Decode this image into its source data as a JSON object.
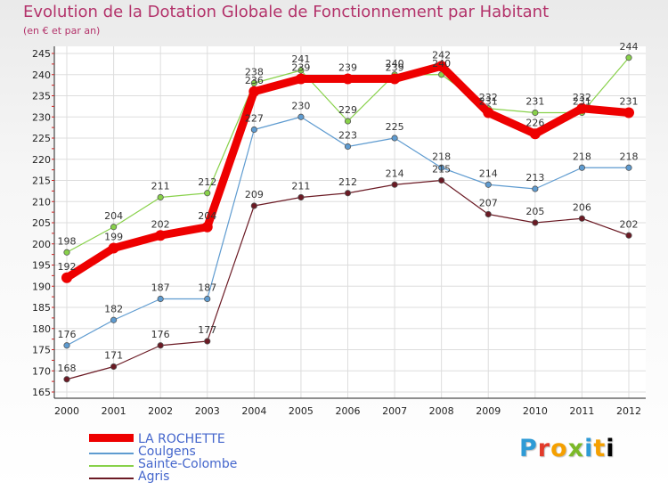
{
  "chart_data": {
    "type": "line",
    "title": "Evolution de la Dotation Globale de Fonctionnement par Habitant",
    "subtitle": "(en € et par an)",
    "categories": [
      "2000",
      "2001",
      "2002",
      "2003",
      "2004",
      "2005",
      "2006",
      "2007",
      "2008",
      "2009",
      "2010",
      "2011",
      "2012"
    ],
    "ylim": [
      165,
      245
    ],
    "yticks": [
      165,
      170,
      175,
      180,
      185,
      190,
      195,
      200,
      205,
      210,
      215,
      220,
      225,
      230,
      235,
      240,
      245
    ],
    "series": [
      {
        "name": "Agris",
        "color": "#6b1a24",
        "values": [
          168,
          171,
          176,
          177,
          209,
          211,
          212,
          214,
          215,
          207,
          205,
          206,
          202
        ]
      },
      {
        "name": "Coulgens",
        "color": "#5e9bd0",
        "values": [
          176,
          182,
          187,
          187,
          227,
          230,
          223,
          225,
          218,
          214,
          213,
          218,
          218
        ]
      },
      {
        "name": "Sainte-Colombe",
        "color": "#88d14a",
        "values": [
          198,
          204,
          211,
          212,
          238,
          241,
          229,
          240,
          240,
          232,
          231,
          231,
          244
        ]
      },
      {
        "name": "LA ROCHETTE",
        "color": "#ee0000",
        "values": [
          192,
          199,
          202,
          204,
          236,
          239,
          239,
          239,
          242,
          231,
          226,
          232,
          231
        ]
      }
    ],
    "legend": [
      {
        "name": "LA ROCHETTE",
        "color": "#ee0000"
      },
      {
        "name": "Coulgens",
        "color": "#5e9bd0"
      },
      {
        "name": "Sainte-Colombe",
        "color": "#88d14a"
      },
      {
        "name": "Agris",
        "color": "#6b1a24"
      }
    ]
  },
  "logo": {
    "letters": [
      "P",
      "r",
      "o",
      "x",
      "i",
      "t",
      "i"
    ]
  }
}
